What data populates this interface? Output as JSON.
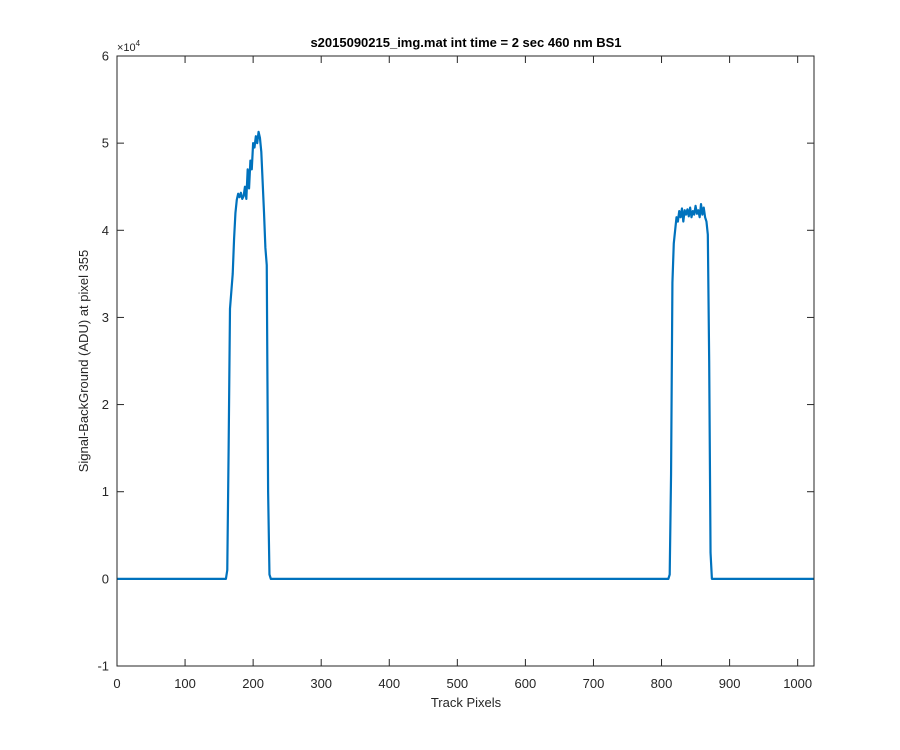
{
  "chart_data": {
    "type": "line",
    "title": "s2015090215_img.mat int time = 2 sec  460 nm BS1",
    "xlabel": "Track Pixels",
    "ylabel": "Signal-BackGround (ADU) at pixel 355",
    "xlim": [
      0,
      1024
    ],
    "ylim": [
      -10000,
      60000
    ],
    "y_exponent_label": "×10",
    "y_exponent_power": "4",
    "x_ticks": [
      0,
      100,
      200,
      300,
      400,
      500,
      600,
      700,
      800,
      900,
      1000
    ],
    "x_tick_labels": [
      "0",
      "100",
      "200",
      "300",
      "400",
      "500",
      "600",
      "700",
      "800",
      "900",
      "1000"
    ],
    "y_ticks": [
      -10000,
      0,
      10000,
      20000,
      30000,
      40000,
      50000,
      60000
    ],
    "y_tick_labels": [
      "-1",
      "0",
      "1",
      "2",
      "3",
      "4",
      "5",
      "6"
    ],
    "grid": false,
    "line_color": "#0072BD",
    "series": [
      {
        "x": [
          0,
          160,
          162,
          164,
          166,
          168,
          170,
          172,
          174,
          176,
          178,
          180,
          182,
          184,
          186,
          188,
          190,
          192,
          194,
          196,
          198,
          200,
          202,
          204,
          206,
          208,
          210,
          212,
          214,
          216,
          218,
          220,
          222,
          224,
          226,
          228,
          230,
          232,
          810,
          812,
          814,
          816,
          818,
          820,
          822,
          824,
          826,
          828,
          830,
          832,
          834,
          836,
          838,
          840,
          842,
          844,
          846,
          848,
          850,
          852,
          854,
          856,
          858,
          860,
          862,
          864,
          866,
          868,
          870,
          872,
          874,
          876,
          878,
          1024
        ],
        "y": [
          0,
          0,
          1000,
          15000,
          31000,
          33000,
          35000,
          39000,
          42000,
          43500,
          44200,
          43800,
          44300,
          43600,
          43900,
          45000,
          43600,
          47000,
          44800,
          48000,
          47000,
          50000,
          49500,
          50800,
          50000,
          51300,
          50600,
          49000,
          45500,
          42000,
          38000,
          36000,
          10000,
          500,
          0,
          0,
          0,
          0,
          0,
          500,
          12000,
          34000,
          38500,
          40000,
          41500,
          41000,
          42200,
          41500,
          42500,
          41000,
          42300,
          41800,
          42400,
          41600,
          42600,
          41500,
          42200,
          41800,
          42800,
          41900,
          42300,
          41500,
          43000,
          41800,
          42600,
          41500,
          41000,
          39500,
          25000,
          3000,
          0,
          0,
          0,
          0
        ]
      }
    ]
  }
}
